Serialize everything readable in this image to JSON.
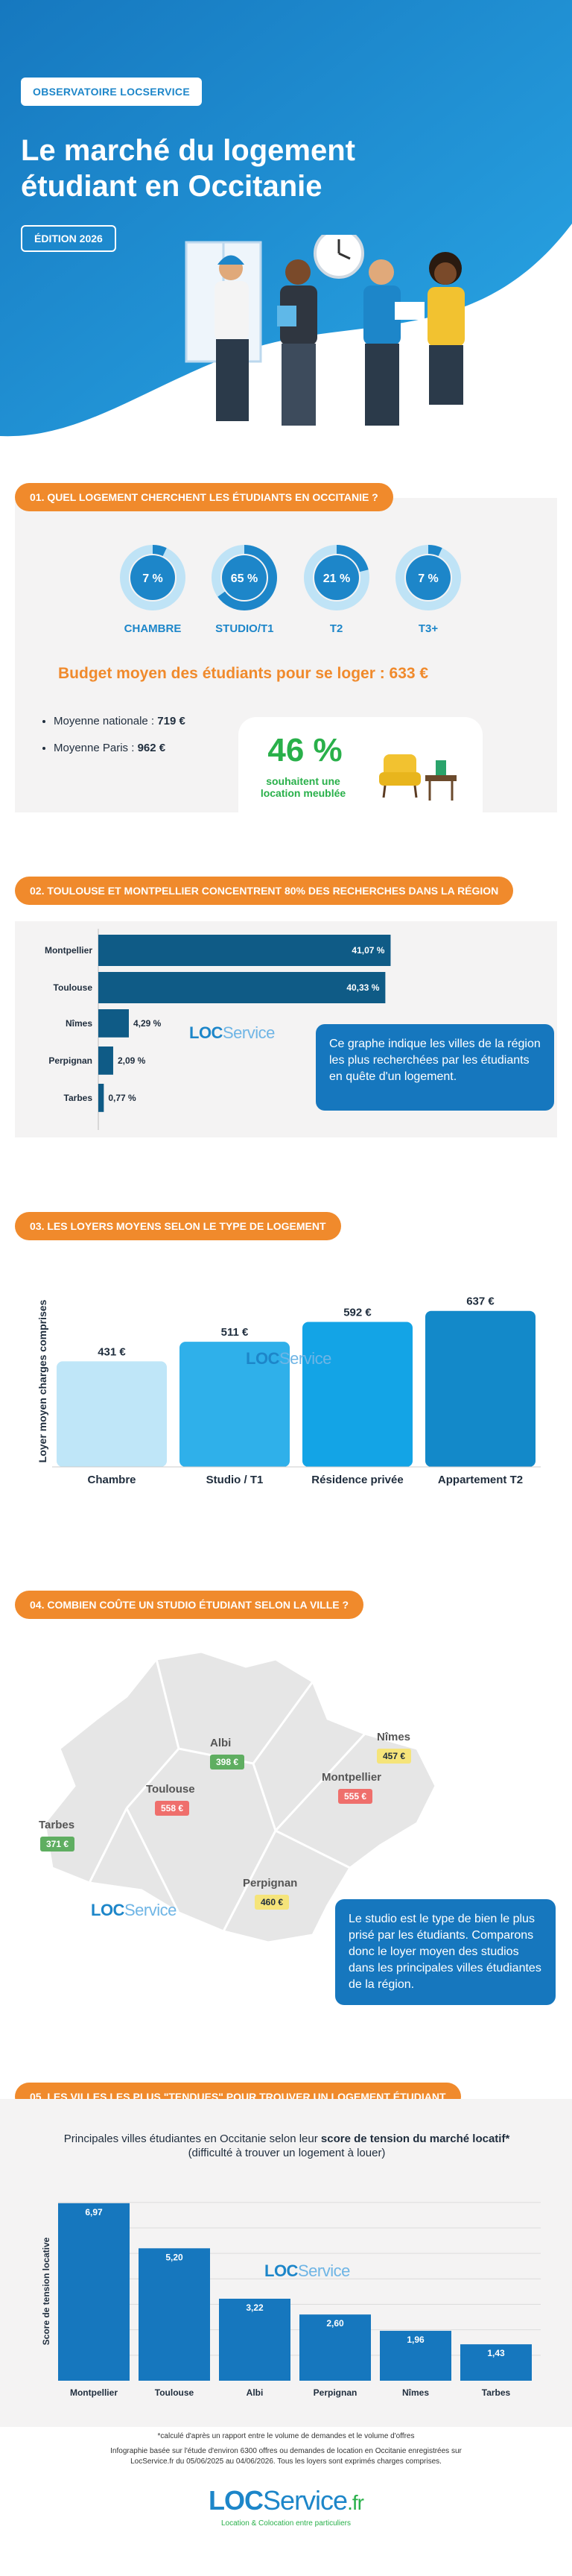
{
  "header": {
    "badge": "OBSERVATOIRE LOCSERVICE",
    "title_line1": "Le marché du logement",
    "title_line2": "étudiant en Occitanie",
    "edition": "ÉDITION 2026"
  },
  "section1": {
    "pill": "01. QUEL LOGEMENT CHERCHENT LES ÉTUDIANTS EN OCCITANIE ?",
    "budget": "Budget moyen des étudiants pour se loger : 633 €",
    "bullets": [
      {
        "label": "Moyenne nationale : ",
        "value": "719 €"
      },
      {
        "label": "Moyenne Paris : ",
        "value": "962 €"
      }
    ],
    "meuble_value": "46 %",
    "meuble_text": "souhaitent une location meublée"
  },
  "section2": {
    "pill": "02. TOULOUSE ET MONTPELLIER CONCENTRENT 80% DES RECHERCHES DANS LA RÉGION",
    "info": "Ce graphe indique les villes de la région les plus recherchées par les étudiants en quête d'un logement."
  },
  "section3": {
    "pill": "03. LES LOYERS MOYENS SELON LE TYPE DE LOGEMENT"
  },
  "section4": {
    "pill": "04. COMBIEN COÛTE UN STUDIO ÉTUDIANT SELON LA VILLE ?",
    "info": "Le studio est le type de bien le plus prisé par les étudiants. Comparons donc le loyer moyen des studios dans les principales villes étudiantes de la région."
  },
  "section5": {
    "pill": "05. LES VILLES LES PLUS \"TENDUES\" POUR TROUVER UN LOGEMENT ÉTUDIANT",
    "subtitle_a": "Principales villes étudiantes en Occitanie selon leur ",
    "subtitle_b": "score de tension du marché locatif*",
    "subtitle_c": "(difficulté à trouver un logement à louer)"
  },
  "watermark": {
    "loc": "LOC",
    "service": "Service",
    "fr": ".fr"
  },
  "footer": {
    "note1": "*calculé d'après un rapport entre le volume de demandes et le volume d'offres",
    "note2": "Infographie basée sur l'étude d'environ 6300 offres ou demandes de location en Occitanie enregistrées sur",
    "note3": "LocService.fr du 05/06/2025 au 04/06/2026. Tous les loyers sont exprimés charges comprises.",
    "logo_loc": "LOC",
    "logo_service": "Service",
    "logo_fr": ".fr",
    "tagline": "Location & Colocation entre particuliers"
  },
  "colors": {
    "brand_blue": "#1d86c9",
    "orange": "#f08a2c",
    "green": "#29b04a",
    "dark_bar": "#0f5b86",
    "info_blue": "#1677be",
    "badge_green": "#5fae61",
    "badge_red": "#ef6f6c",
    "badge_yellow": "#f5e47a"
  },
  "chart_data": [
    {
      "type": "pie",
      "title": "",
      "categories": [
        "CHAMBRE",
        "STUDIO/T1",
        "T2",
        "T3+"
      ],
      "values": [
        7,
        65,
        21,
        7
      ],
      "labels": [
        "7 %",
        "65 %",
        "21 %",
        "7 %"
      ],
      "unit": "%"
    },
    {
      "type": "bar",
      "orientation": "horizontal",
      "categories": [
        "Montpellier",
        "Toulouse",
        "Nîmes",
        "Perpignan",
        "Tarbes"
      ],
      "values": [
        41.07,
        40.33,
        4.29,
        2.09,
        0.77
      ],
      "labels": [
        "41,07 %",
        "40,33 %",
        "4,29 %",
        "2,09 %",
        "0,77 %"
      ],
      "xlim": [
        0,
        45
      ]
    },
    {
      "type": "bar",
      "categories": [
        "Chambre",
        "Studio / T1",
        "Résidence privée",
        "Appartement T2"
      ],
      "values": [
        431,
        511,
        592,
        637
      ],
      "labels": [
        "431 €",
        "511 €",
        "592 €",
        "637 €"
      ],
      "ylabel": "Loyer moyen charges comprises",
      "ylim": [
        0,
        700
      ],
      "colors": [
        "#bfe6f8",
        "#2fb0ea",
        "#13a4e6",
        "#1389c9"
      ]
    },
    {
      "type": "map",
      "cities": [
        {
          "name": "Albi",
          "value": "398 €",
          "tone": "green"
        },
        {
          "name": "Nîmes",
          "value": "457 €",
          "tone": "yellow"
        },
        {
          "name": "Toulouse",
          "value": "558 €",
          "tone": "red"
        },
        {
          "name": "Montpellier",
          "value": "555 €",
          "tone": "red"
        },
        {
          "name": "Tarbes",
          "value": "371 €",
          "tone": "green"
        },
        {
          "name": "Perpignan",
          "value": "460 €",
          "tone": "yellow"
        }
      ]
    },
    {
      "type": "bar",
      "categories": [
        "Montpellier",
        "Toulouse",
        "Albi",
        "Perpignan",
        "Nîmes",
        "Tarbes"
      ],
      "values": [
        6.97,
        5.2,
        3.22,
        2.6,
        1.96,
        1.43
      ],
      "labels": [
        "6,97",
        "5,20",
        "3,22",
        "2,60",
        "1,96",
        "1,43"
      ],
      "ylabel": "Score de tension locative",
      "ylim": [
        0,
        7.2
      ]
    }
  ]
}
